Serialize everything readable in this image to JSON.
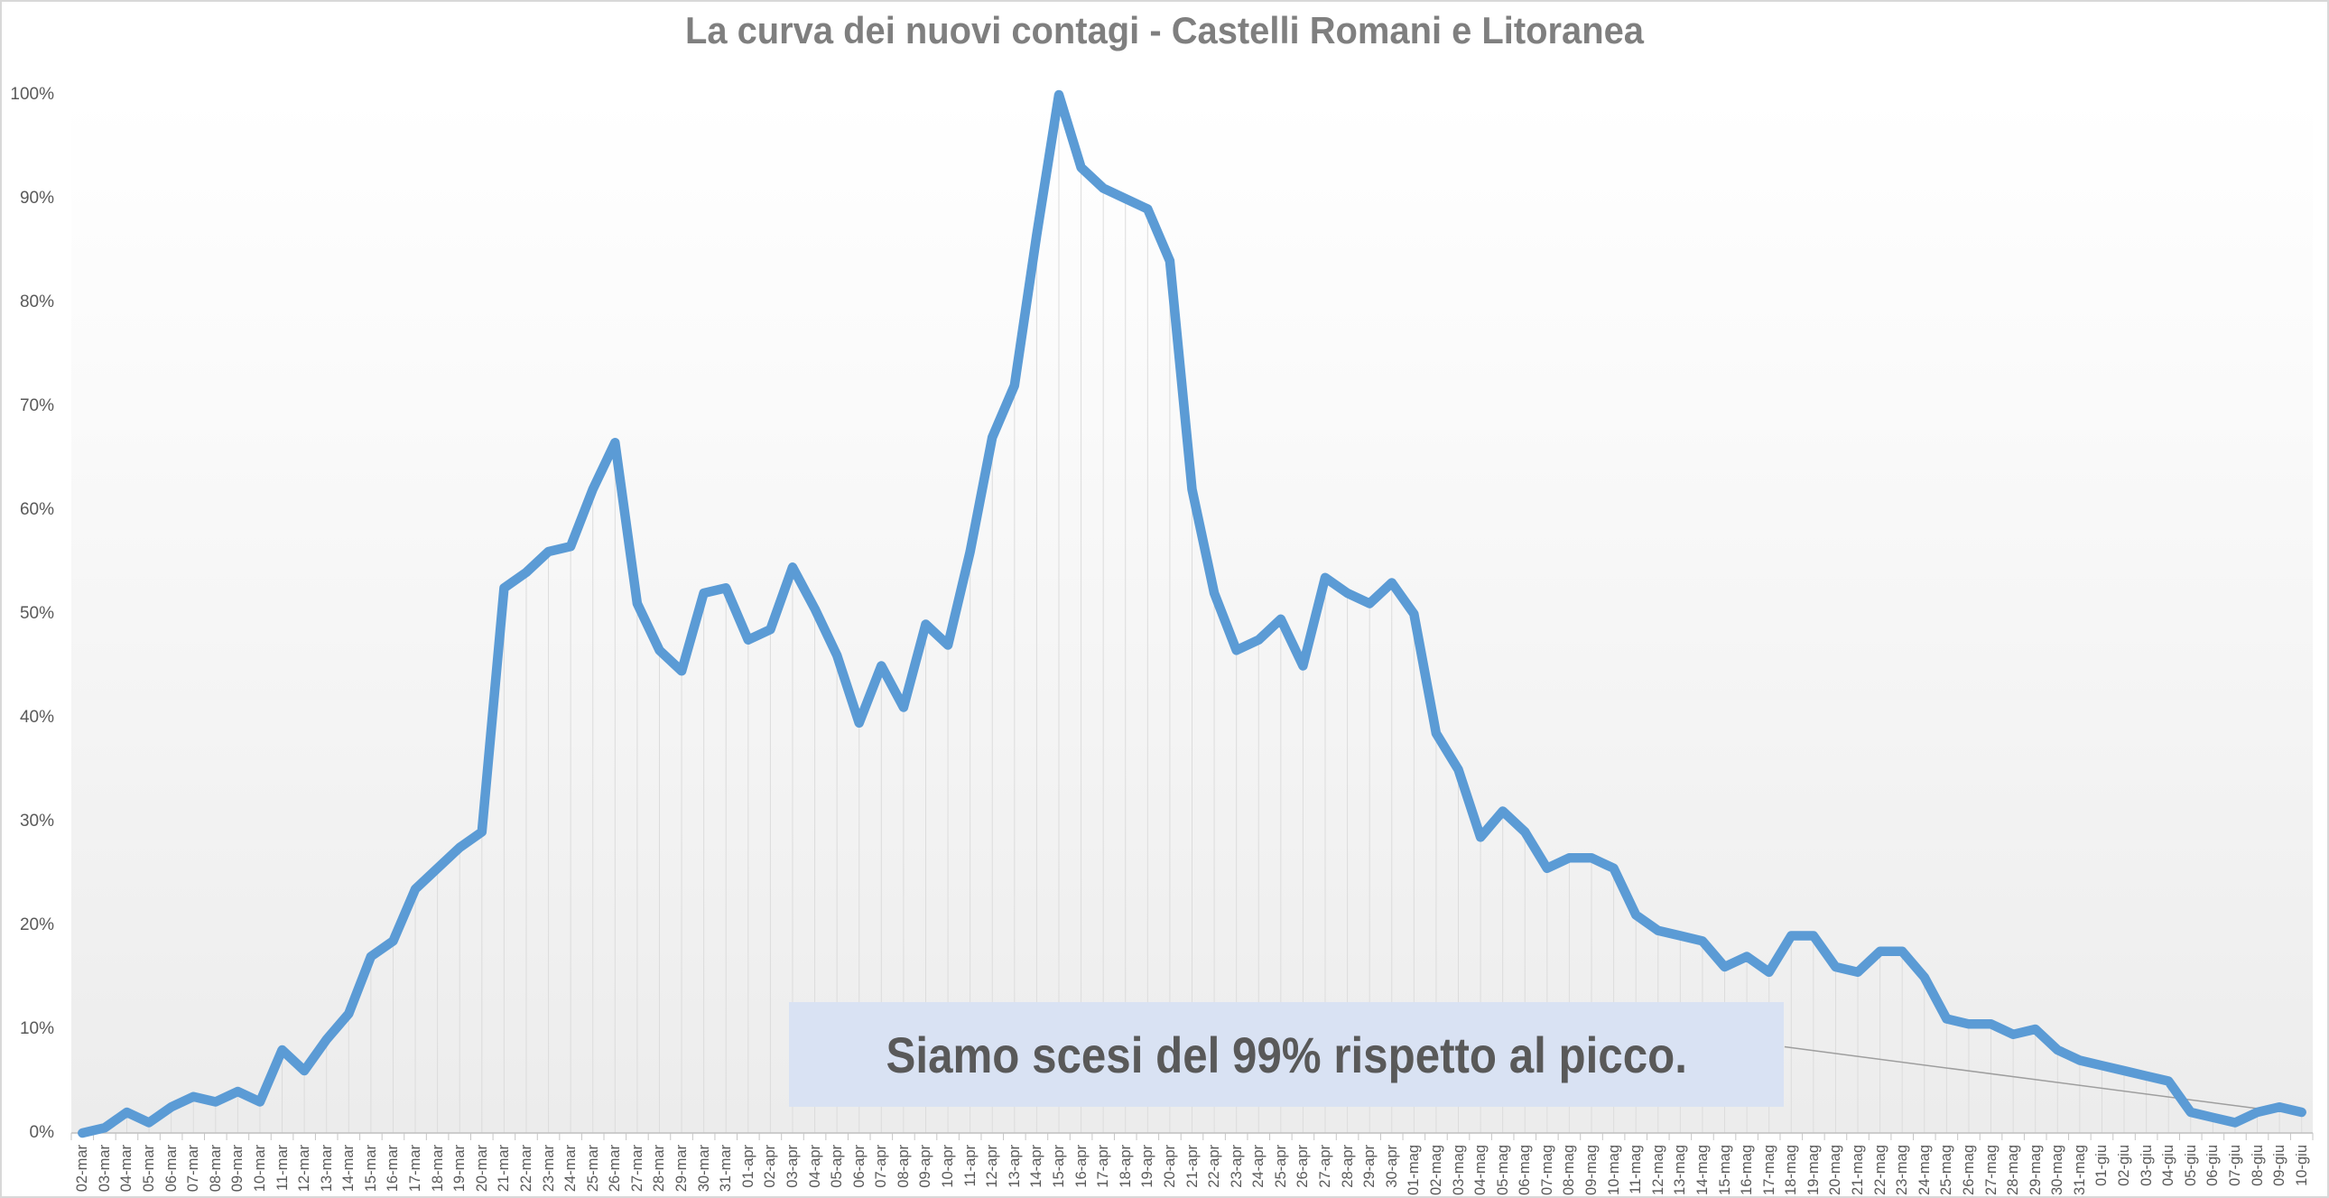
{
  "title": "La curva dei nuovi contagi - Castelli Romani e Litoranea",
  "annotation": {
    "text": "Siamo scesi del 99% rispetto al picco."
  },
  "colors": {
    "line": "#5B9BD5",
    "title_text": "#7F7F7F",
    "axis_label": "#595959",
    "axis_line": "#BFBFBF",
    "tick_mark": "#C6C6C6",
    "drop_line": "#DCDCDC",
    "trend_line": "#9E9E9E",
    "annotation_bg": "#D9E2F3",
    "annotation_text": "#595959",
    "plot_bg_top": "#FFFFFF",
    "plot_bg_mid": "#FAFAFA",
    "plot_bg_bottom": "#ECECEC",
    "frame_border": "#D8D8D8"
  },
  "chart_data": {
    "type": "line",
    "title": "La curva dei nuovi contagi - Castelli Romani e Litoranea",
    "xlabel": "",
    "ylabel": "",
    "ylim": [
      0,
      100
    ],
    "y_tick_step": 10,
    "y_tick_labels": [
      "0%",
      "10%",
      "20%",
      "30%",
      "40%",
      "50%",
      "60%",
      "70%",
      "80%",
      "90%",
      "100%"
    ],
    "grid": "off",
    "legend": "none",
    "drop_lines": true,
    "categories": [
      "02-mar",
      "03-mar",
      "04-mar",
      "05-mar",
      "06-mar",
      "07-mar",
      "08-mar",
      "09-mar",
      "10-mar",
      "11-mar",
      "12-mar",
      "13-mar",
      "14-mar",
      "15-mar",
      "16-mar",
      "17-mar",
      "18-mar",
      "19-mar",
      "20-mar",
      "21-mar",
      "22-mar",
      "23-mar",
      "24-mar",
      "25-mar",
      "26-mar",
      "27-mar",
      "28-mar",
      "29-mar",
      "30-mar",
      "31-mar",
      "01-apr",
      "02-apr",
      "03-apr",
      "04-apr",
      "05-apr",
      "06-apr",
      "07-apr",
      "08-apr",
      "09-apr",
      "10-apr",
      "11-apr",
      "12-apr",
      "13-apr",
      "14-apr",
      "15-apr",
      "16-apr",
      "17-apr",
      "18-apr",
      "19-apr",
      "20-apr",
      "21-apr",
      "22-apr",
      "23-apr",
      "24-apr",
      "25-apr",
      "26-apr",
      "27-apr",
      "28-apr",
      "29-apr",
      "30-apr",
      "01-mag",
      "02-mag",
      "03-mag",
      "04-mag",
      "05-mag",
      "06-mag",
      "07-mag",
      "08-mag",
      "09-mag",
      "10-mag",
      "11-mag",
      "12-mag",
      "13-mag",
      "14-mag",
      "15-mag",
      "16-mag",
      "17-mag",
      "18-mag",
      "19-mag",
      "20-mag",
      "21-mag",
      "22-mag",
      "23-mag",
      "24-mag",
      "25-mag",
      "26-mag",
      "27-mag",
      "28-mag",
      "29-mag",
      "30-mag",
      "31-mag",
      "01-giu",
      "02-giu",
      "03-giu",
      "04-giu",
      "05-giu",
      "06-giu",
      "07-giu",
      "08-giu",
      "09-giu",
      "10-giu"
    ],
    "values": [
      0,
      0.5,
      2,
      1,
      2.5,
      3.5,
      3,
      4,
      3,
      8,
      6,
      9,
      11.5,
      17,
      18.5,
      23.5,
      25.5,
      27.5,
      29,
      52.5,
      54,
      56,
      56.5,
      62,
      66.5,
      51,
      46.5,
      44.5,
      52,
      52.5,
      47.5,
      48.5,
      54.5,
      50.5,
      46,
      39.5,
      45,
      41,
      49,
      47,
      56,
      67,
      72,
      86.5,
      100,
      93,
      91,
      90,
      89,
      84,
      62,
      52,
      46.5,
      47.5,
      49.5,
      45,
      53.5,
      52,
      51,
      53,
      50,
      38.5,
      35,
      28.5,
      31,
      29,
      25.5,
      26.5,
      26.5,
      25.5,
      21,
      19.5,
      19,
      18.5,
      16,
      17,
      15.5,
      19,
      19,
      16,
      15.5,
      17.5,
      17.5,
      15,
      11,
      10.5,
      10.5,
      9.5,
      10,
      8,
      7,
      6.5,
      6,
      5.5,
      5,
      2,
      1.5,
      1,
      2,
      2.5,
      2
    ],
    "trendline": {
      "x1_index": 76.7,
      "y1": 8.3,
      "x2_index": 100,
      "y2": 1.8
    }
  }
}
